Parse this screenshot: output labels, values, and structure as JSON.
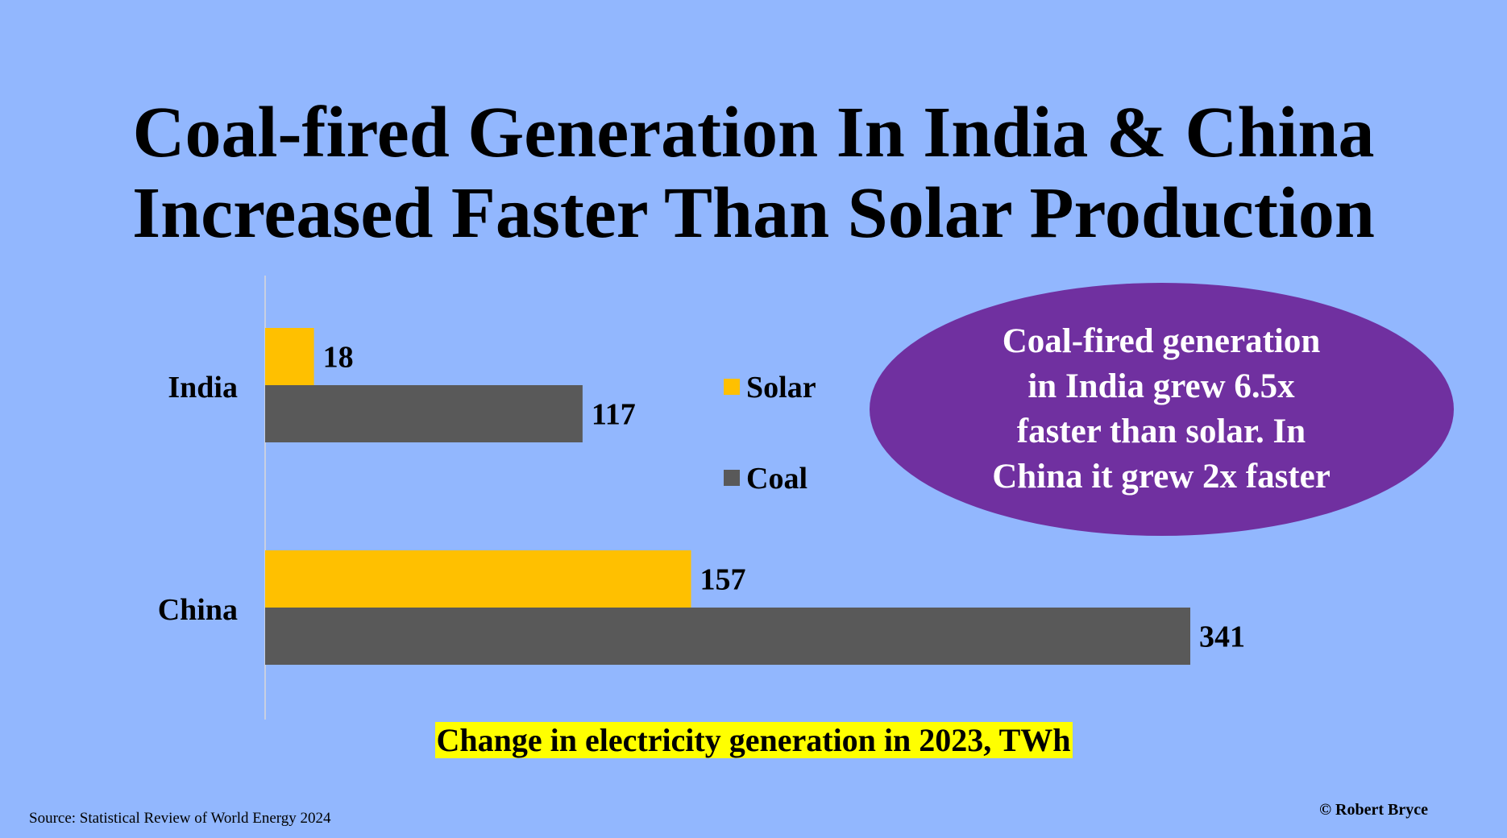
{
  "title": {
    "line1": "Coal-fired Generation In India & China",
    "line2": "Increased Faster Than Solar Production"
  },
  "callout": {
    "lines": [
      "Coal-fired generation",
      "in India grew 6.5x",
      "faster than solar. In",
      "China it grew 2x faster"
    ],
    "color": "#7030a0"
  },
  "colors": {
    "background": "#92b7fe",
    "solar": "#ffc000",
    "coal": "#595959",
    "caption_highlight": "#ffff00"
  },
  "chart_data": {
    "type": "bar",
    "orientation": "horizontal",
    "categories": [
      "India",
      "China"
    ],
    "series": [
      {
        "name": "Solar",
        "values": [
          18,
          157
        ],
        "color": "#ffc000"
      },
      {
        "name": "Coal",
        "values": [
          117,
          341
        ],
        "color": "#595959"
      }
    ],
    "xlabel": "Change in electricity generation in 2023, TWh",
    "data_labels": true,
    "legend": [
      "Solar",
      "Coal"
    ],
    "legend_position": "center-right",
    "grid": false,
    "xlim": [
      0,
      341
    ]
  },
  "source": "Source: Statistical Review of World Energy  2024",
  "copyright": "© Robert Bryce"
}
